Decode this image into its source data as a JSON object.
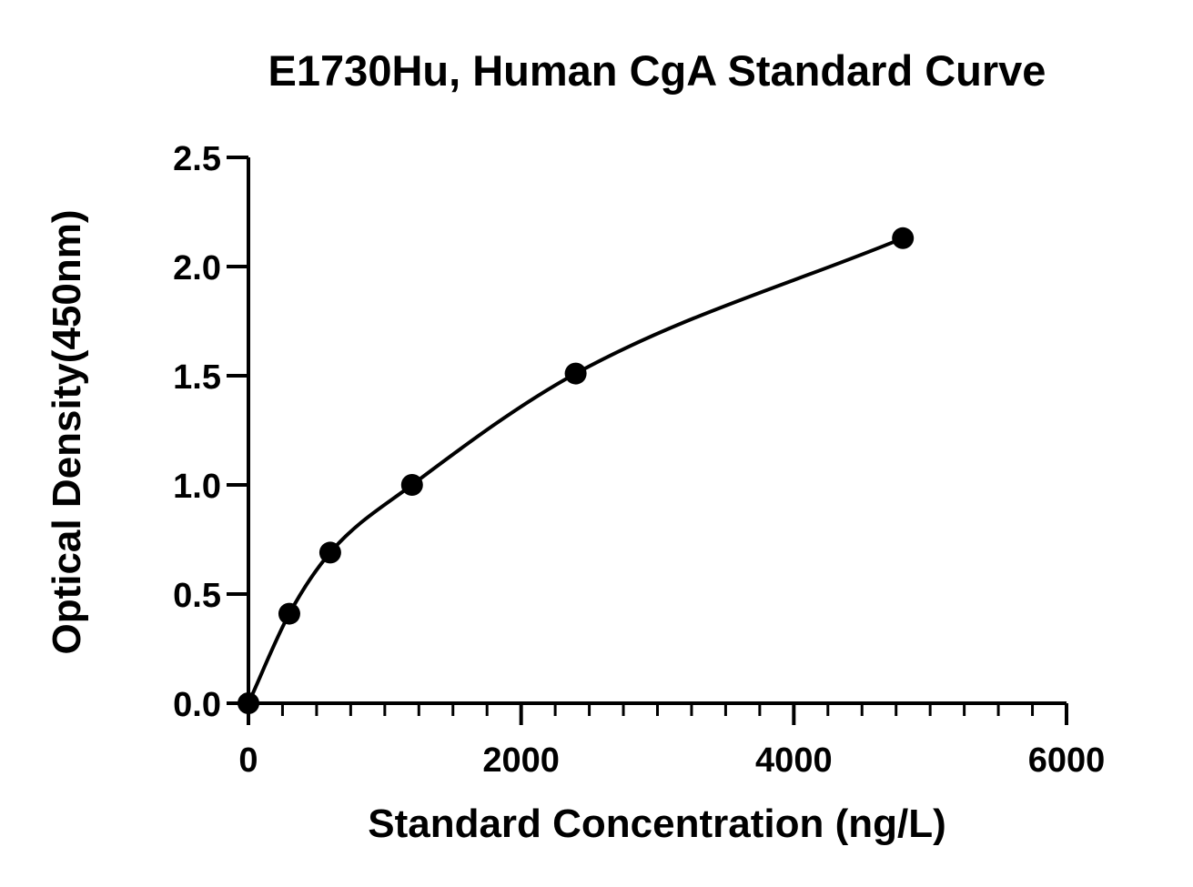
{
  "chart_data": {
    "type": "scatter",
    "title": "E1730Hu, Human CgA Standard Curve",
    "xlabel": "Standard Concentration (ng/L)",
    "ylabel": "Optical Density(450nm)",
    "xlim": [
      0,
      6000
    ],
    "ylim": [
      0,
      2.5
    ],
    "x_ticks": [
      0,
      2000,
      4000,
      6000
    ],
    "x_tick_labels": [
      "0",
      "2000",
      "4000",
      "6000"
    ],
    "x_minor_step": 250,
    "y_ticks": [
      0,
      0.5,
      1.0,
      1.5,
      2.0,
      2.5
    ],
    "y_tick_labels": [
      "0.0",
      "0.5",
      "1.0",
      "1.5",
      "2.0",
      "2.5"
    ],
    "grid": false,
    "legend": "none",
    "series": [
      {
        "x": [
          0,
          300,
          600,
          1200,
          2400,
          4800
        ],
        "y": [
          0.0,
          0.41,
          0.69,
          1.0,
          1.51,
          2.13
        ],
        "marker": "circle",
        "fit_line": "smooth curve through points"
      }
    ],
    "colors": {
      "points": "#000000",
      "curve": "#000000"
    }
  }
}
